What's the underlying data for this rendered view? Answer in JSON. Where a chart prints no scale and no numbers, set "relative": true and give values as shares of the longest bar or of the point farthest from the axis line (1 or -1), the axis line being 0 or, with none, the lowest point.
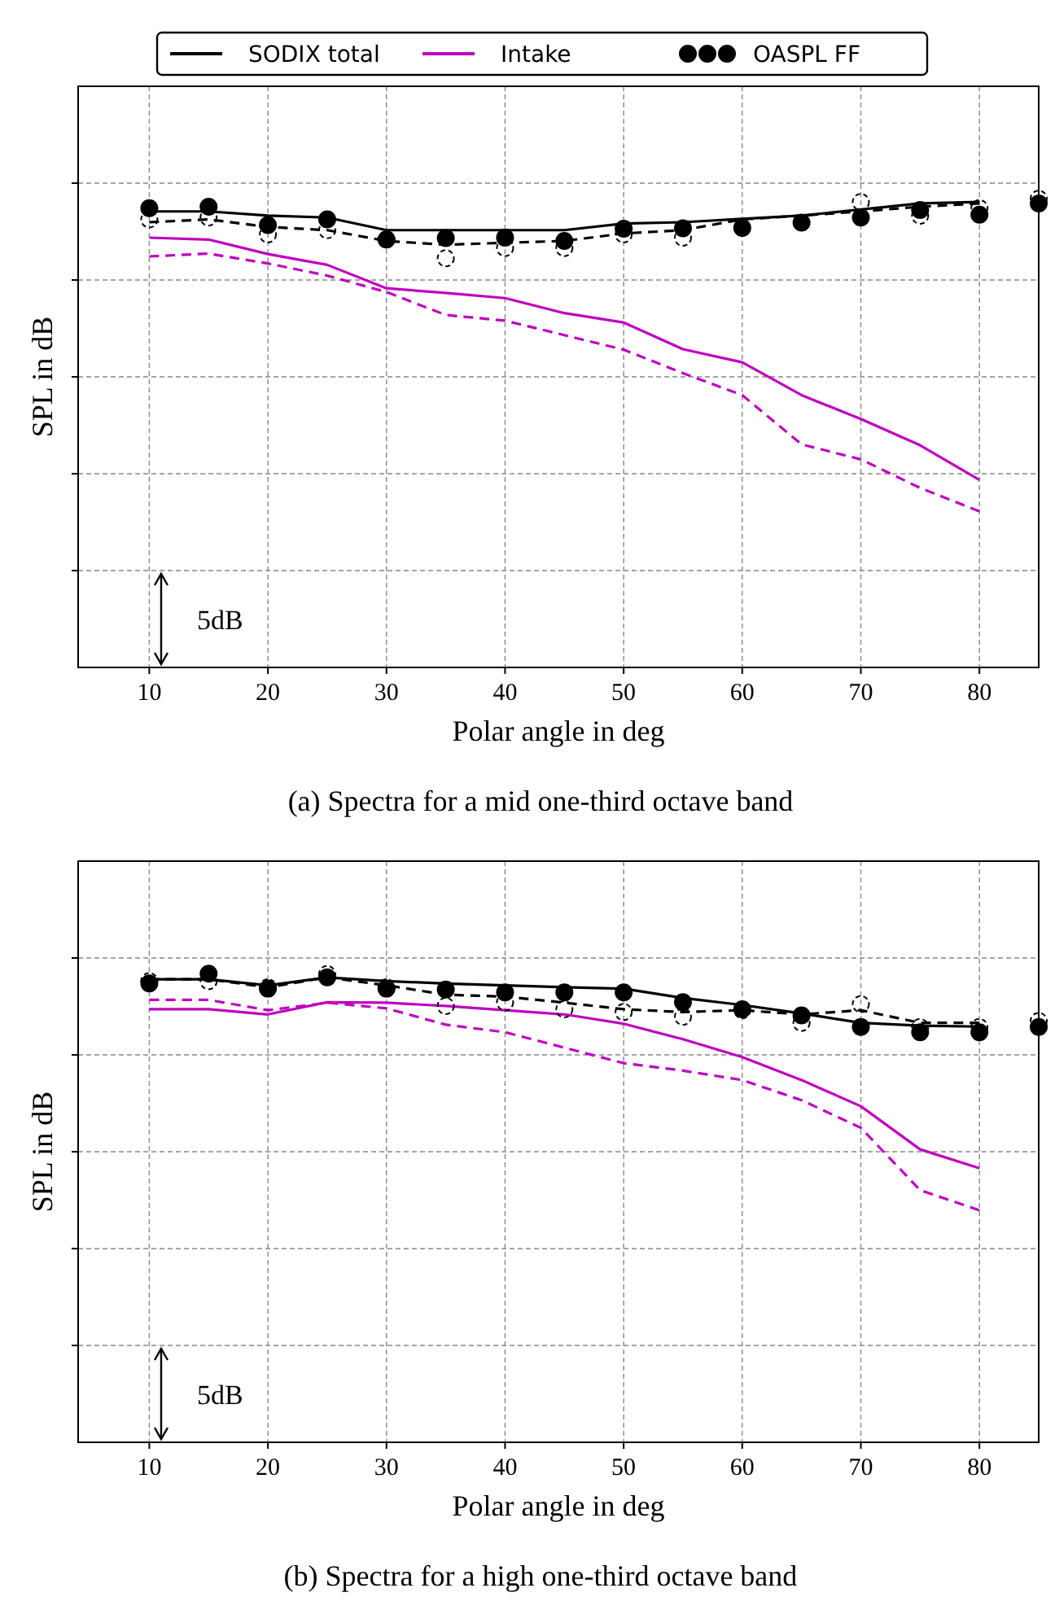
{
  "chart_data": [
    {
      "type": "line",
      "title": "(a) Spectra for a mid one-third octave band",
      "xlabel": "Polar angle in deg",
      "ylabel": "SPL in dB",
      "relative": true,
      "tick_labels": "x",
      "grid": true,
      "legend": "top",
      "annotations": [
        "5dB"
      ],
      "xlim": [
        4,
        85
      ],
      "xticks": [
        10,
        20,
        30,
        40,
        50,
        60,
        70,
        80
      ],
      "x": [
        10,
        15,
        20,
        25,
        30,
        35,
        40,
        45,
        50,
        55,
        60,
        65,
        70,
        75,
        80
      ],
      "series": [
        {
          "name": "SODIX total",
          "color": "#000000",
          "line_style": "solid",
          "values": [
            0.973,
            0.973,
            0.964,
            0.96,
            0.933,
            0.933,
            0.933,
            0.933,
            0.947,
            0.95,
            0.957,
            0.964,
            0.977,
            0.99,
            0.993
          ]
        },
        {
          "name": "Intake",
          "color": "#bf00bf",
          "line_style": "solid",
          "values": [
            0.917,
            0.913,
            0.882,
            0.859,
            0.809,
            0.799,
            0.788,
            0.756,
            0.736,
            0.679,
            0.651,
            0.581,
            0.53,
            0.474,
            0.4
          ]
        },
        {
          "name": "OASPL FF",
          "type": "scatter",
          "color": "#000000",
          "line_style": "solid",
          "marker": "circle",
          "x": [
            10,
            15,
            20,
            25,
            30,
            35,
            40,
            45,
            50,
            55,
            60,
            65,
            70,
            75,
            80,
            85
          ],
          "values": [
            0.98,
            0.983,
            0.944,
            0.956,
            0.913,
            0.916,
            0.917,
            0.91,
            0.936,
            0.937,
            0.938,
            0.949,
            0.96,
            0.976,
            0.966,
            0.99
          ]
        },
        {
          "color": "#000000",
          "line_style": "dashed",
          "values": [
            0.95,
            0.956,
            0.94,
            0.933,
            0.91,
            0.902,
            0.906,
            0.91,
            0.926,
            0.933,
            0.956,
            0.964,
            0.973,
            0.983,
            0.99
          ]
        },
        {
          "color": "#bf00bf",
          "line_style": "dashed",
          "values": [
            0.877,
            0.883,
            0.862,
            0.836,
            0.801,
            0.752,
            0.74,
            0.709,
            0.678,
            0.628,
            0.581,
            0.476,
            0.444,
            0.383,
            0.333
          ]
        },
        {
          "type": "scatter",
          "color": "#000000",
          "line_style": "dashed",
          "marker": "circle",
          "x": [
            10,
            15,
            20,
            25,
            30,
            35,
            40,
            45,
            50,
            55,
            60,
            65,
            70,
            75,
            80,
            85
          ],
          "values": [
            0.956,
            0.96,
            0.924,
            0.933,
            0.913,
            0.873,
            0.895,
            0.895,
            0.924,
            0.917,
            null,
            null,
            0.993,
            0.964,
            0.98,
            1.0
          ]
        }
      ]
    },
    {
      "type": "line",
      "title": "(b) Spectra for a high one-third octave band",
      "xlabel": "Polar angle in deg",
      "ylabel": "SPL in dB",
      "relative": true,
      "tick_labels": "x",
      "grid": true,
      "annotations": [
        "5dB"
      ],
      "xlim": [
        4,
        85
      ],
      "xticks": [
        10,
        20,
        30,
        40,
        50,
        60,
        70,
        80
      ],
      "x": [
        10,
        15,
        20,
        25,
        30,
        35,
        40,
        45,
        50,
        55,
        60,
        65,
        70,
        75,
        80
      ],
      "series": [
        {
          "color": "#000000",
          "line_style": "solid",
          "values": [
            0.988,
            0.988,
            0.975,
            0.992,
            0.984,
            0.979,
            0.975,
            0.971,
            0.968,
            0.948,
            0.933,
            0.915,
            0.895,
            0.889,
            0.887
          ]
        },
        {
          "color": "#bf00bf",
          "line_style": "solid",
          "values": [
            0.924,
            0.924,
            0.913,
            0.939,
            0.938,
            0.931,
            0.922,
            0.913,
            0.893,
            0.86,
            0.822,
            0.773,
            0.717,
            0.625,
            0.585
          ]
        },
        {
          "type": "scatter",
          "color": "#000000",
          "line_style": "solid",
          "marker": "circle",
          "x": [
            10,
            15,
            20,
            25,
            30,
            35,
            40,
            45,
            50,
            55,
            60,
            65,
            70,
            75,
            80,
            85
          ],
          "values": [
            0.979,
            1.0,
            0.968,
            0.992,
            0.968,
            0.966,
            0.96,
            0.96,
            0.96,
            0.939,
            0.924,
            0.911,
            0.886,
            0.875,
            0.875,
            0.886
          ]
        },
        {
          "color": "#000000",
          "line_style": "dashed",
          "values": [
            0.988,
            0.988,
            0.971,
            0.992,
            0.975,
            0.955,
            0.951,
            0.938,
            0.924,
            0.918,
            0.922,
            0.913,
            0.922,
            0.895,
            0.895
          ]
        },
        {
          "color": "#bf00bf",
          "line_style": "dashed",
          "values": [
            0.944,
            0.944,
            0.922,
            0.938,
            0.926,
            0.891,
            0.875,
            0.842,
            0.809,
            0.793,
            0.773,
            0.73,
            0.671,
            0.538,
            0.495
          ]
        },
        {
          "type": "scatter",
          "color": "#000000",
          "line_style": "dashed",
          "marker": "circle",
          "x": [
            10,
            15,
            20,
            25,
            30,
            35,
            40,
            45,
            50,
            55,
            60,
            65,
            70,
            75,
            80,
            85
          ],
          "values": [
            0.984,
            0.984,
            0.971,
            0.999,
            0.971,
            0.931,
            0.939,
            0.924,
            0.918,
            0.908,
            0.922,
            0.895,
            0.935,
            0.886,
            0.886,
            0.899
          ]
        }
      ]
    }
  ]
}
